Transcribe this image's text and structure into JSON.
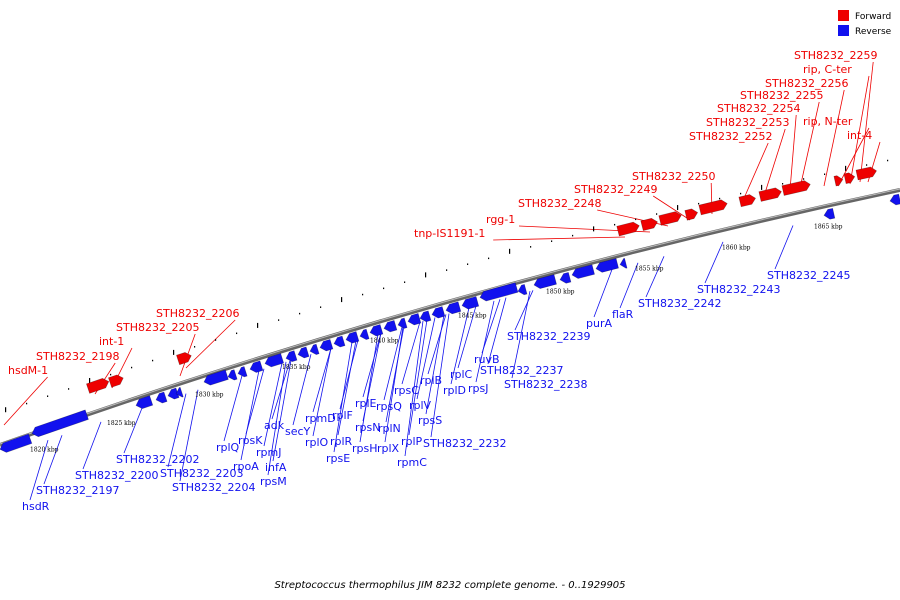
{
  "caption": "Streptococcus thermophilus JIM 8232 complete genome. - 0..1929905",
  "legend": [
    {
      "label": "Forward",
      "color": "#ee0000"
    },
    {
      "label": "Reverse",
      "color": "#1111ee"
    }
  ],
  "colors": {
    "forward": "#ee0000",
    "reverse": "#1111ee",
    "backbone": "#555555"
  },
  "ticks": [
    "1820 kbp",
    "1825 kbp",
    "1830 kbp",
    "1835 kbp",
    "1840 kbp",
    "1845 kbp",
    "1850 kbp",
    "1855 kbp",
    "1860 kbp",
    "1865 kbp"
  ],
  "forward_labels": [
    "hsdM-1",
    "STH8232_2198",
    "int-1",
    "STH8232_2205",
    "STH8232_2206",
    "tnp-IS1191-1",
    "rgg-1",
    "STH8232_2248",
    "STH8232_2249",
    "STH8232_2250",
    "STH8232_2252",
    "STH8232_2253",
    "STH8232_2254",
    "STH8232_2255",
    "STH8232_2256",
    "rip, N-ter",
    "int-4",
    "rip, C-ter",
    "STH8232_2259"
  ],
  "reverse_labels": [
    "hsdR",
    "STH8232_2197",
    "STH8232_2200",
    "STH8232_2202",
    "STH8232_2203",
    "STH8232_2204",
    "rplQ",
    "rpoA",
    "rpsK",
    "rpmJ",
    "infA",
    "rpsM",
    "adk",
    "secY",
    "rplO",
    "rpmD",
    "rpsE",
    "rplR",
    "rplF",
    "rpsH",
    "rplE",
    "rpsN",
    "rplX",
    "rpsQ",
    "rplN",
    "rpsC",
    "rpmC",
    "rplP",
    "rplV",
    "rpsS",
    "rplB",
    "STH8232_2232",
    "rplD",
    "rplC",
    "rpsJ",
    "ruvB",
    "STH8232_2237",
    "STH8232_2238",
    "STH8232_2239",
    "purA",
    "flaR",
    "STH8232_2242",
    "STH8232_2243",
    "STH8232_2245"
  ]
}
